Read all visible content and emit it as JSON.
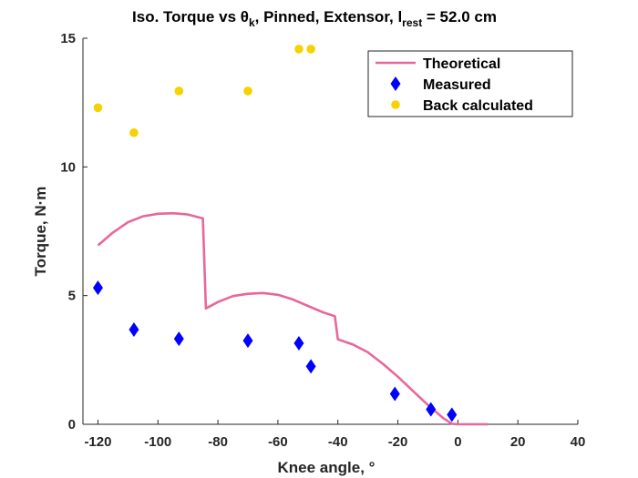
{
  "chart_data": {
    "type": "line",
    "title": {
      "main": "Iso. Torque vs θ",
      "sub_k": "k",
      "mid": ", Pinned, Extensor, l",
      "sub_rest": "rest",
      "end": " = 52.0 cm"
    },
    "xlabel": "Knee angle, °",
    "ylabel": "Torque, N·m",
    "xlim": [
      -125,
      40
    ],
    "ylim": [
      0,
      15
    ],
    "xticks": [
      -120,
      -100,
      -80,
      -60,
      -40,
      -20,
      0,
      20,
      40
    ],
    "yticks": [
      0,
      5,
      10,
      15
    ],
    "grid": false,
    "legend_position": "top-right",
    "series": [
      {
        "name": "Theoretical",
        "kind": "line",
        "color": "#e8679b",
        "x": [
          -120,
          -115,
          -110,
          -105,
          -100,
          -95,
          -90,
          -85,
          -84,
          -80,
          -75,
          -70,
          -65,
          -60,
          -55,
          -50,
          -45,
          -41,
          -40,
          -35,
          -30,
          -25,
          -20,
          -15,
          -10,
          -5,
          -2,
          0,
          5,
          10
        ],
        "y": [
          6.95,
          7.45,
          7.85,
          8.08,
          8.18,
          8.2,
          8.15,
          8.0,
          4.5,
          4.75,
          4.98,
          5.07,
          5.1,
          5.03,
          4.85,
          4.6,
          4.35,
          4.2,
          3.3,
          3.1,
          2.8,
          2.35,
          1.85,
          1.3,
          0.75,
          0.25,
          0.02,
          0.0,
          0.0,
          0.0
        ]
      },
      {
        "name": "Measured",
        "kind": "diamond",
        "color": "#0000ff",
        "x": [
          -120,
          -108,
          -93,
          -70,
          -53,
          -49,
          -21,
          -9,
          -2
        ],
        "y": [
          5.3,
          3.68,
          3.32,
          3.25,
          3.15,
          2.25,
          1.18,
          0.58,
          0.37
        ]
      },
      {
        "name": "Back calculated",
        "kind": "dot",
        "color": "#f5d200",
        "x": [
          -120,
          -108,
          -93,
          -70,
          -53,
          -49
        ],
        "y": [
          12.3,
          11.33,
          12.95,
          12.95,
          14.58,
          14.58
        ]
      }
    ]
  }
}
